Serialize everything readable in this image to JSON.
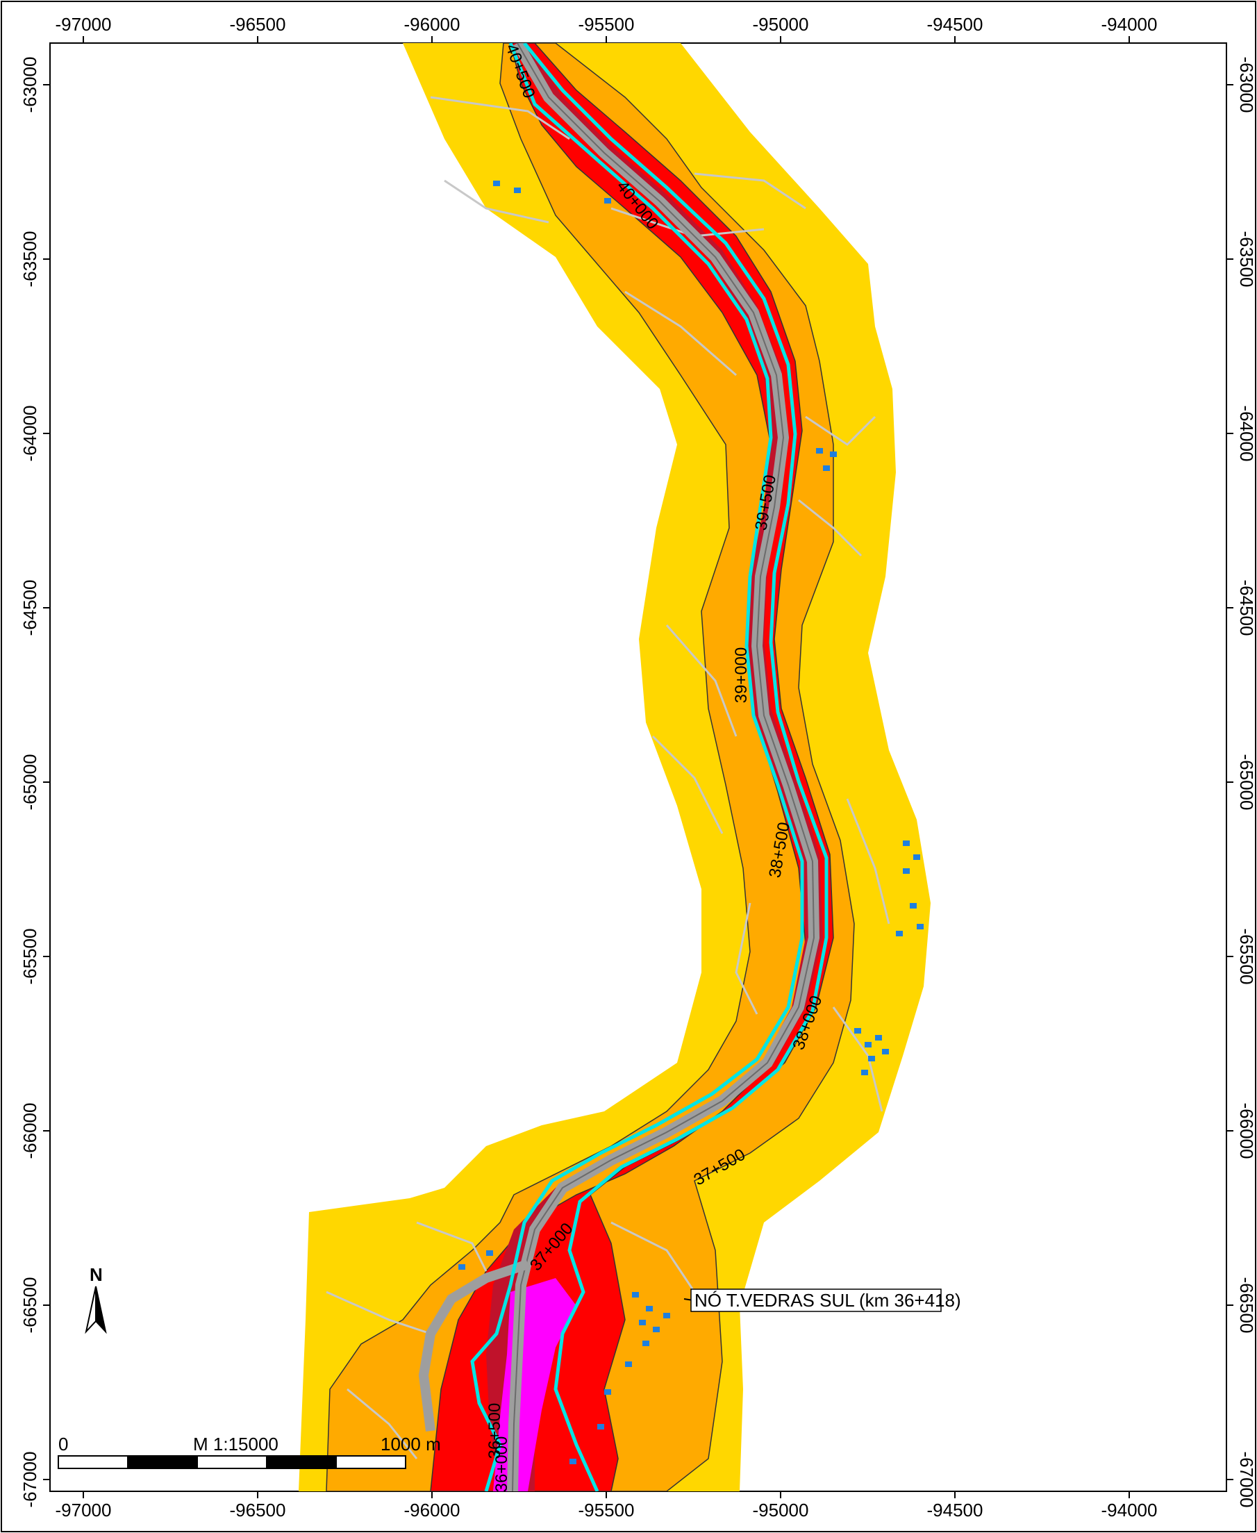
{
  "map": {
    "x_ticks": [
      "-97000",
      "-96500",
      "-96000",
      "-95500",
      "-95000",
      "-94500",
      "-94000"
    ],
    "y_ticks": [
      "-63000",
      "-63500",
      "-64000",
      "-64500",
      "-65000",
      "-65500",
      "-66000",
      "-66500",
      "-67000"
    ],
    "km_markers": [
      "40+500",
      "40+000",
      "39+500",
      "39+000",
      "38+500",
      "38+000",
      "37+500",
      "37+000",
      "36+500",
      "36+000"
    ],
    "callout": "NÓ T.VEDRAS SUL (km 36+418)",
    "scale": {
      "start_label": "0",
      "ratio_label": "M 1:15000",
      "end_label": "1000 m"
    },
    "north_label": "N",
    "colors": {
      "zone_outer": "#ffd700",
      "zone_middle": "#ffaa00",
      "zone_inner": "#ff0000",
      "zone_core": "#c0122b",
      "road": "#9e9e9e",
      "contour": "#00e5e5",
      "node_area": "#ff00ff",
      "buildings": "#1e7fe0",
      "background_roads": "#c8c8c8"
    }
  }
}
